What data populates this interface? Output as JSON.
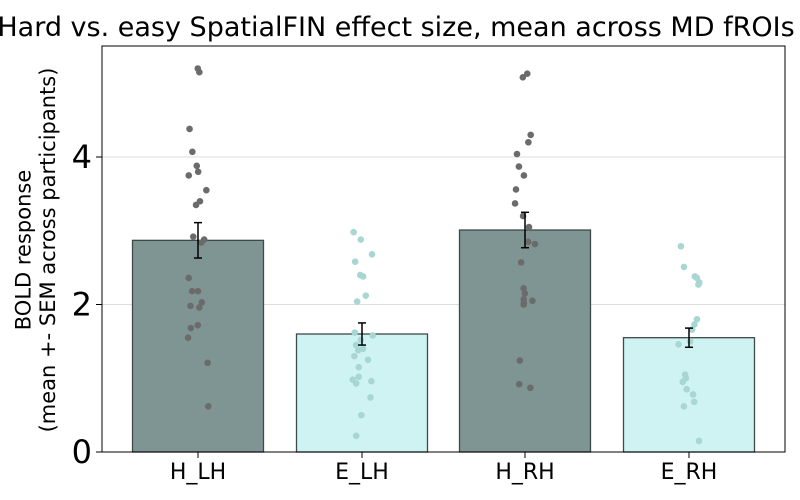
{
  "chart_data": {
    "type": "bar",
    "title": "Hard vs. easy SpatialFIN effect size, mean across MD fROIs",
    "xlabel": "",
    "ylabel": "BOLD response\n(mean +- SEM across participants)",
    "ylim": [
      0,
      5.5
    ],
    "yticks": [
      0,
      2,
      4
    ],
    "grid": "horizontal",
    "categories": [
      "H_LH",
      "E_LH",
      "H_RH",
      "E_RH"
    ],
    "values": [
      2.87,
      1.6,
      3.01,
      1.55
    ],
    "errors": [
      0.24,
      0.15,
      0.24,
      0.13
    ],
    "bar_colors": [
      "#7f9593",
      "#cff3f2",
      "#7f9593",
      "#cff3f2"
    ],
    "dot_colors": [
      "#6b6b6b",
      "#a7d6d3",
      "#6b6b6b",
      "#a7d6d3"
    ],
    "points": [
      [
        5.2,
        5.15,
        4.38,
        4.07,
        3.88,
        3.8,
        3.75,
        3.55,
        3.4,
        3.35,
        2.92,
        2.88,
        2.84,
        2.36,
        2.18,
        2.18,
        2.03,
        1.98,
        1.96,
        1.72,
        1.68,
        1.55,
        1.21,
        0.62
      ],
      [
        2.98,
        2.88,
        2.68,
        2.58,
        2.4,
        2.38,
        2.12,
        2.04,
        1.62,
        1.58,
        1.52,
        1.45,
        1.4,
        1.38,
        1.3,
        1.25,
        1.15,
        1.02,
        0.98,
        0.96,
        0.93,
        0.74,
        0.5,
        0.22
      ],
      [
        5.13,
        5.08,
        4.3,
        4.2,
        4.04,
        3.87,
        3.75,
        3.56,
        3.37,
        3.2,
        3.05,
        2.85,
        2.82,
        2.57,
        2.22,
        2.15,
        2.07,
        2.05,
        2.02,
        2.0,
        1.24,
        0.92,
        0.87
      ],
      [
        2.79,
        2.51,
        2.38,
        2.36,
        2.3,
        2.27,
        1.8,
        1.73,
        1.66,
        1.5,
        1.46,
        1.05,
        1.0,
        0.95,
        0.85,
        0.78,
        0.68,
        0.62,
        0.15
      ]
    ]
  }
}
